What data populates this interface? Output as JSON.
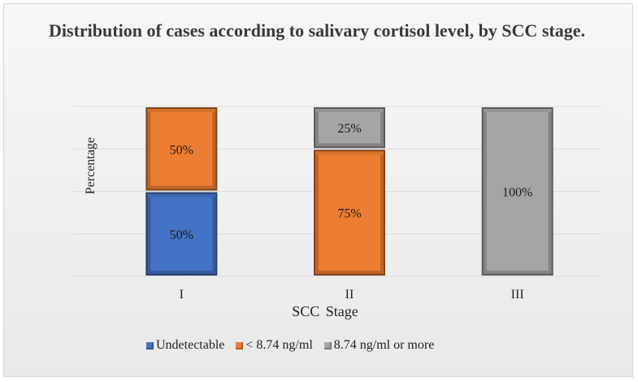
{
  "chart_data": {
    "type": "bar",
    "stacked": true,
    "title": "Distribution of cases according to salivary cortisol level, by SCC stage.",
    "xlabel": "SCC  Stage",
    "ylabel": "Percentage",
    "ylim": [
      0,
      100
    ],
    "categories": [
      "I",
      "II",
      "III"
    ],
    "series": [
      {
        "name": "Undetectable",
        "color": "#4472c4",
        "values": [
          50,
          0,
          0
        ],
        "labels": [
          "50%",
          "",
          ""
        ]
      },
      {
        "name": "< 8.74 ng/ml",
        "color": "#ed7d31",
        "values": [
          50,
          75,
          0
        ],
        "labels": [
          "50%",
          "75%",
          ""
        ]
      },
      {
        "name": "8.74 ng/ml or more",
        "color": "#a5a5a5",
        "values": [
          0,
          25,
          100
        ],
        "labels": [
          "",
          "25%",
          "100%"
        ]
      }
    ],
    "grid": true,
    "legend": "bottom"
  }
}
